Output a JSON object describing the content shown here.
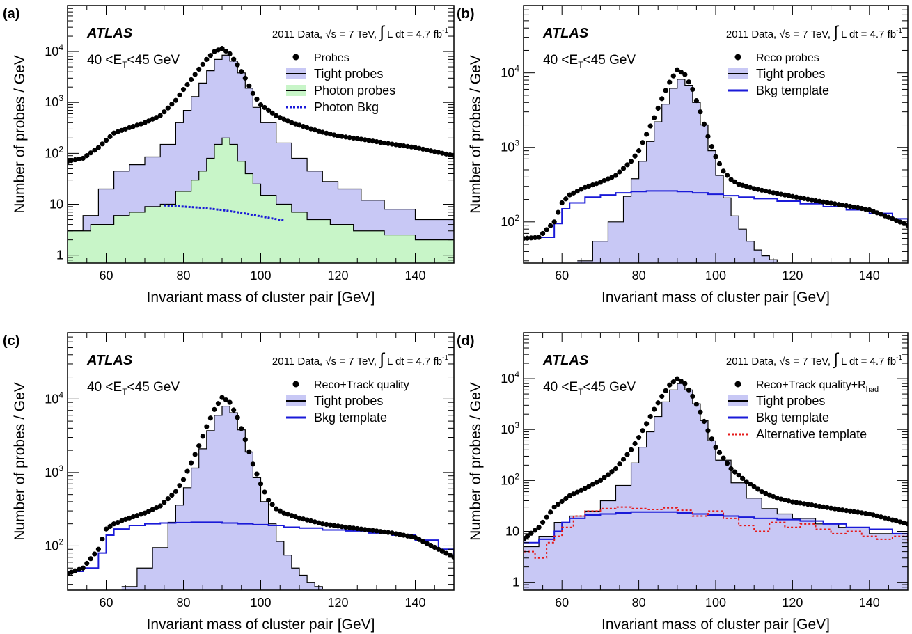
{
  "figure": {
    "common": {
      "atlas_label": "ATLAS",
      "lumi_prefix": "2011 Data, ",
      "lumi_sqrt": "√s",
      "lumi_energy": " = 7 TeV, ",
      "lumi_integral": "∫",
      "lumi_rest": " L dt = 4.7 fb",
      "lumi_unit_exp": "-1",
      "et_range": {
        "prefix": "40 <E",
        "sub": "T",
        "suffix": "<45 GeV"
      },
      "xlabel": "Invariant mass of cluster pair [GeV]",
      "ylabel": "Number of probes / GeV",
      "colors": {
        "tight_fill": "#c8c8f5",
        "photon_fill": "#c8f5c8",
        "bkg_line": "#1a1ad8",
        "alt_line": "#e61919",
        "marker": "#000000"
      }
    }
  },
  "chart_data": [
    {
      "panel": "(a)",
      "type": "line",
      "xlabel": "Invariant mass of cluster pair [GeV]",
      "ylabel": "Number of probes / GeV",
      "xlim": [
        50,
        150
      ],
      "ylim": [
        0.7,
        80000
      ],
      "log_y": true,
      "x_ticks": [
        60,
        80,
        100,
        120,
        140
      ],
      "y_ticks": [
        {
          "value": 1,
          "label": "1"
        },
        {
          "value": 10,
          "label": "10"
        },
        {
          "value": 100,
          "label": "10",
          "exp": "2"
        },
        {
          "value": 1000,
          "label": "10",
          "exp": "3"
        },
        {
          "value": 10000,
          "label": "10",
          "exp": "4"
        }
      ],
      "legend": [
        {
          "label": "Probes",
          "style": "marker"
        },
        {
          "label": "Tight probes",
          "style": "tight"
        },
        {
          "label": "Photon probes",
          "style": "photon"
        },
        {
          "label": "Photon Bkg",
          "style": "dotted"
        }
      ],
      "series": [
        {
          "name": "Tight probes",
          "style": "tight",
          "x": [
            50,
            54,
            58,
            62,
            66,
            70,
            74,
            78,
            80,
            82,
            84,
            86,
            88,
            90,
            92,
            94,
            96,
            98,
            100,
            104,
            108,
            112,
            116,
            120,
            126,
            132,
            140,
            150
          ],
          "y": [
            3,
            6,
            20,
            45,
            60,
            85,
            150,
            400,
            700,
            1300,
            2400,
            4200,
            7000,
            8500,
            6500,
            3800,
            1900,
            800,
            400,
            160,
            80,
            45,
            28,
            20,
            12,
            8,
            5,
            3
          ]
        },
        {
          "name": "Photon probes",
          "style": "photon",
          "x": [
            50,
            56,
            62,
            66,
            70,
            74,
            78,
            82,
            84,
            86,
            88,
            90,
            92,
            94,
            96,
            98,
            100,
            104,
            108,
            112,
            118,
            124,
            132,
            140,
            150
          ],
          "y": [
            3,
            4,
            6,
            7,
            9,
            10,
            18,
            30,
            45,
            80,
            150,
            200,
            150,
            70,
            40,
            25,
            15,
            10,
            7,
            5,
            4,
            3,
            2.5,
            2,
            2
          ]
        },
        {
          "name": "Photon Bkg",
          "style": "dotted",
          "x": [
            75,
            80,
            85,
            90,
            95,
            100,
            106
          ],
          "y": [
            9.5,
            9,
            8.5,
            7.7,
            6.8,
            5.8,
            4.8
          ]
        },
        {
          "name": "Probes",
          "style": "marker",
          "x": [
            50,
            54,
            58,
            62,
            66,
            70,
            74,
            78,
            80,
            82,
            84,
            86,
            88,
            90,
            92,
            94,
            96,
            98,
            100,
            104,
            108,
            112,
            116,
            120,
            126,
            132,
            140,
            150
          ],
          "y": [
            70,
            80,
            130,
            250,
            320,
            400,
            550,
            1100,
            1800,
            2800,
            4500,
            7000,
            10000,
            11500,
            9000,
            5500,
            3000,
            1500,
            900,
            550,
            400,
            320,
            260,
            220,
            190,
            160,
            130,
            90
          ]
        }
      ]
    },
    {
      "panel": "(b)",
      "type": "line",
      "xlabel": "Invariant mass of cluster pair [GeV]",
      "ylabel": "Number of probes / GeV",
      "xlim": [
        50,
        150
      ],
      "ylim": [
        28,
        80000
      ],
      "log_y": true,
      "x_ticks": [
        60,
        80,
        100,
        120,
        140
      ],
      "y_ticks": [
        {
          "value": 100,
          "label": "10",
          "exp": "2"
        },
        {
          "value": 1000,
          "label": "10",
          "exp": "3"
        },
        {
          "value": 10000,
          "label": "10",
          "exp": "4"
        }
      ],
      "legend": [
        {
          "label": "Reco probes",
          "style": "marker"
        },
        {
          "label": "Tight probes",
          "style": "tight"
        },
        {
          "label": "Bkg template",
          "style": "solidblue"
        }
      ],
      "series": [
        {
          "name": "Tight probes",
          "style": "tight",
          "x": [
            64,
            68,
            72,
            76,
            78,
            80,
            82,
            84,
            86,
            88,
            90,
            92,
            94,
            96,
            98,
            100,
            102,
            104,
            106,
            108,
            110,
            112,
            114,
            116
          ],
          "y": [
            30,
            55,
            100,
            220,
            380,
            650,
            1200,
            2200,
            3800,
            6200,
            8200,
            6800,
            4000,
            2000,
            900,
            420,
            210,
            120,
            80,
            55,
            42,
            35,
            31,
            29
          ]
        },
        {
          "name": "Bkg template",
          "style": "solidblue",
          "x": [
            50,
            54,
            58,
            60,
            62,
            66,
            70,
            74,
            78,
            82,
            86,
            90,
            94,
            98,
            102,
            106,
            110,
            116,
            122,
            128,
            134,
            140,
            146,
            150
          ],
          "y": [
            60,
            62,
            95,
            150,
            180,
            215,
            230,
            245,
            255,
            260,
            260,
            255,
            245,
            235,
            225,
            215,
            205,
            190,
            175,
            160,
            145,
            130,
            110,
            90
          ]
        },
        {
          "name": "Reco probes",
          "style": "marker",
          "x": [
            50,
            54,
            58,
            60,
            62,
            66,
            70,
            74,
            78,
            80,
            82,
            84,
            86,
            88,
            90,
            92,
            94,
            96,
            98,
            100,
            102,
            104,
            106,
            110,
            116,
            122,
            128,
            134,
            140,
            146,
            150
          ],
          "y": [
            60,
            62,
            100,
            180,
            230,
            290,
            340,
            420,
            650,
            900,
            1500,
            2500,
            4500,
            7500,
            11000,
            9500,
            6000,
            3000,
            1400,
            750,
            480,
            370,
            320,
            280,
            240,
            210,
            185,
            165,
            145,
            110,
            90
          ]
        }
      ]
    },
    {
      "panel": "(c)",
      "type": "line",
      "xlabel": "Invariant mass of cluster pair [GeV]",
      "ylabel": "Number of probes / GeV",
      "xlim": [
        50,
        150
      ],
      "ylim": [
        25,
        80000
      ],
      "log_y": true,
      "x_ticks": [
        60,
        80,
        100,
        120,
        140
      ],
      "y_ticks": [
        {
          "value": 100,
          "label": "10",
          "exp": "2"
        },
        {
          "value": 1000,
          "label": "10",
          "exp": "3"
        },
        {
          "value": 10000,
          "label": "10",
          "exp": "4"
        }
      ],
      "legend": [
        {
          "label": "Reco+Track quality",
          "style": "marker"
        },
        {
          "label": "Tight probes",
          "style": "tight"
        },
        {
          "label": "Bkg template",
          "style": "solidblue"
        }
      ],
      "series": [
        {
          "name": "Tight probes",
          "style": "tight",
          "x": [
            64,
            68,
            72,
            76,
            78,
            80,
            82,
            84,
            86,
            88,
            90,
            92,
            94,
            96,
            98,
            100,
            102,
            104,
            106,
            108,
            110,
            112,
            114,
            116
          ],
          "y": [
            28,
            50,
            95,
            210,
            360,
            620,
            1150,
            2100,
            3700,
            6000,
            8000,
            6500,
            3800,
            1900,
            850,
            400,
            200,
            115,
            75,
            50,
            40,
            32,
            28,
            26
          ]
        },
        {
          "name": "Bkg template",
          "style": "solidblue",
          "x": [
            50,
            54,
            58,
            60,
            62,
            66,
            70,
            74,
            78,
            82,
            86,
            90,
            94,
            98,
            102,
            106,
            110,
            116,
            122,
            128,
            134,
            140,
            146,
            150
          ],
          "y": [
            45,
            50,
            80,
            140,
            170,
            190,
            200,
            205,
            208,
            210,
            210,
            205,
            200,
            195,
            190,
            180,
            175,
            165,
            160,
            150,
            140,
            120,
            90,
            70
          ]
        },
        {
          "name": "Reco+Track quality",
          "style": "marker",
          "x": [
            50,
            54,
            58,
            60,
            62,
            66,
            70,
            74,
            78,
            80,
            82,
            84,
            86,
            88,
            90,
            92,
            94,
            96,
            98,
            100,
            102,
            104,
            106,
            110,
            116,
            122,
            128,
            134,
            140,
            146,
            150
          ],
          "y": [
            42,
            50,
            90,
            170,
            200,
            240,
            280,
            350,
            550,
            800,
            1350,
            2300,
            4200,
            7200,
            10500,
            9000,
            5600,
            2800,
            1300,
            700,
            420,
            320,
            280,
            240,
            200,
            180,
            165,
            150,
            130,
            90,
            70
          ]
        }
      ]
    },
    {
      "panel": "(d)",
      "type": "line",
      "xlabel": "Invariant mass of cluster pair [GeV]",
      "ylabel": "Number of probes / GeV",
      "xlim": [
        50,
        150
      ],
      "ylim": [
        0.7,
        80000
      ],
      "log_y": true,
      "x_ticks": [
        60,
        80,
        100,
        120,
        140
      ],
      "y_ticks": [
        {
          "value": 1,
          "label": "1"
        },
        {
          "value": 10,
          "label": "10"
        },
        {
          "value": 100,
          "label": "10",
          "exp": "2"
        },
        {
          "value": 1000,
          "label": "10",
          "exp": "3"
        },
        {
          "value": 10000,
          "label": "10",
          "exp": "4"
        }
      ],
      "legend": [
        {
          "label": "Reco+Track quality+R",
          "sub": "had",
          "style": "marker"
        },
        {
          "label": "Tight probes",
          "style": "tight"
        },
        {
          "label": "Bkg template",
          "style": "solidblue"
        },
        {
          "label": "Alternative template",
          "style": "dottedred"
        }
      ],
      "series": [
        {
          "name": "Tight probes",
          "style": "tight",
          "x": [
            50,
            54,
            58,
            62,
            66,
            70,
            74,
            78,
            80,
            82,
            84,
            86,
            88,
            90,
            92,
            94,
            96,
            98,
            100,
            104,
            108,
            112,
            116,
            120,
            126,
            132,
            140,
            150
          ],
          "y": [
            5,
            8,
            15,
            20,
            25,
            40,
            80,
            220,
            450,
            900,
            1800,
            3500,
            6000,
            8000,
            6000,
            3200,
            1500,
            600,
            250,
            90,
            45,
            28,
            22,
            18,
            14,
            12,
            9,
            6
          ]
        },
        {
          "name": "Bkg template",
          "style": "solidblue",
          "x": [
            50,
            54,
            58,
            60,
            62,
            66,
            70,
            74,
            78,
            82,
            86,
            90,
            94,
            98,
            102,
            106,
            110,
            116,
            122,
            128,
            134,
            140,
            146,
            150
          ],
          "y": [
            6,
            7,
            10,
            15,
            18,
            21,
            22,
            23,
            24,
            24,
            24,
            23,
            22,
            21,
            20,
            19,
            18,
            17,
            16,
            14,
            12,
            11,
            9,
            8
          ]
        },
        {
          "name": "Alternative template",
          "style": "dottedred",
          "x": [
            50,
            53,
            56,
            58,
            60,
            63,
            66,
            70,
            74,
            78,
            82,
            86,
            90,
            94,
            98,
            102,
            106,
            110,
            114,
            118,
            122,
            126,
            130,
            134,
            138,
            142,
            146,
            150
          ],
          "y": [
            4,
            3,
            6,
            8,
            12,
            20,
            25,
            28,
            30,
            28,
            27,
            29,
            26,
            20,
            25,
            18,
            13,
            10,
            15,
            12,
            14,
            11,
            9,
            10,
            8,
            7,
            8,
            6
          ]
        },
        {
          "name": "Reco+Track quality+Rhad",
          "style": "marker",
          "x": [
            50,
            54,
            58,
            62,
            66,
            70,
            74,
            78,
            80,
            82,
            84,
            86,
            88,
            90,
            92,
            94,
            96,
            98,
            100,
            104,
            108,
            112,
            116,
            120,
            126,
            132,
            140,
            150
          ],
          "y": [
            7,
            12,
            30,
            50,
            70,
            100,
            170,
            400,
            700,
            1300,
            2500,
            4500,
            7500,
            10000,
            8000,
            4500,
            2200,
            950,
            450,
            170,
            95,
            60,
            45,
            38,
            32,
            27,
            22,
            14
          ]
        }
      ]
    }
  ]
}
